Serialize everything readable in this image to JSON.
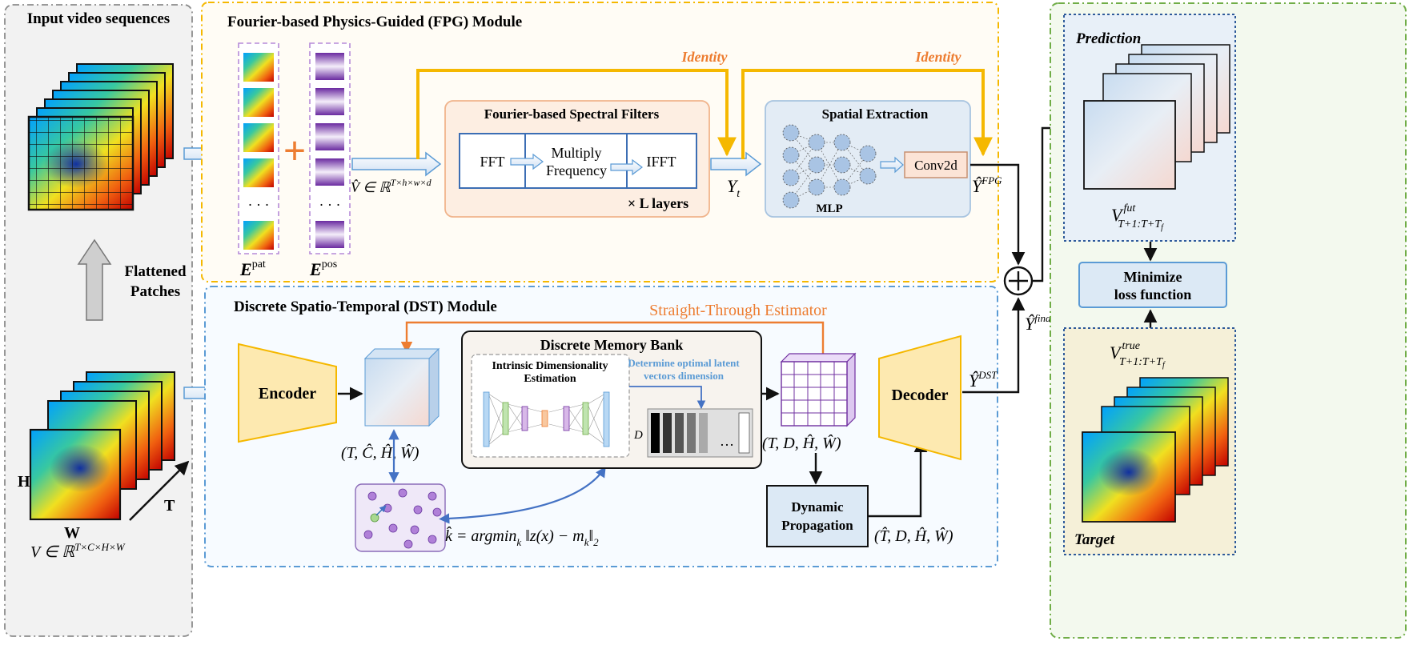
{
  "input_panel": {
    "title": "Input video sequences",
    "flatten_label_1": "Flattened",
    "flatten_label_2": "Patches",
    "dim_h": "H",
    "dim_w": "W",
    "dim_t": "T",
    "formula_base": "V ∈ ℝ",
    "formula_sup": "T×C×H×W"
  },
  "fpg": {
    "title": "Fourier-based Physics-Guided (FPG) Module",
    "identity_1": "Identity",
    "identity_2": "Identity",
    "ellipsis": "· · ·",
    "e_pat": "E",
    "e_pat_sup": "pat",
    "e_pos": "E",
    "e_pos_sup": "pos",
    "v_hat": "V̂ ∈ ℝ",
    "v_hat_sup": "T×h×w×d",
    "spectral_title": "Fourier-based Spectral Filters",
    "fft": "FFT",
    "multiply_1": "Multiply",
    "multiply_2": "Frequency",
    "ifft": "IFFT",
    "layers": "× L layers",
    "y_t": "Y",
    "y_t_sub": "t",
    "spatial_title": "Spatial Extraction",
    "mlp": "MLP",
    "conv": "Conv2d",
    "y_fpg": "Ŷ",
    "y_fpg_sup": "FPG"
  },
  "dst": {
    "title": "Discrete Spatio-Temporal (DST) Module",
    "ste": "Straight-Through Estimator",
    "encoder": "Encoder",
    "memory_title": "Discrete Memory Bank",
    "ide_1": "Intrinsic Dimensionality",
    "ide_2": "Estimation",
    "determine_1": "Determine optimal latent",
    "determine_2": "vectors dimension",
    "d_label": "D",
    "dots": "…",
    "tuple_1": "(T, Ĉ, Ĥ, Ŵ)",
    "tuple_2": "(T, D, Ĥ, Ŵ)",
    "tuple_3": "(T̂, D, Ĥ, Ŵ)",
    "k_formula": "k̂ = argmin",
    "k_sub": "k",
    "k_rest": " ‖z(x) − m",
    "k_sub2": "k",
    "k_tail": "‖",
    "k_sub3": "2",
    "dynamic_1": "Dynamic",
    "dynamic_2": "Propagation",
    "decoder": "Decoder",
    "y_dst": "Ŷ",
    "y_dst_sup": "DST"
  },
  "output": {
    "y_final": "Ŷ",
    "y_final_sup": "final",
    "prediction": "Prediction",
    "v_fut": "V",
    "v_fut_sup": "fut",
    "v_fut_sub": "T+1:T+T",
    "v_fut_subsub": "f",
    "minimize_1": "Minimize",
    "minimize_2": "loss function",
    "v_true": "V",
    "v_true_sup": "true",
    "v_true_sub": "T+1:T+T",
    "v_true_subsub": "f",
    "target": "Target"
  },
  "colors": {
    "gray_panel": "#f2f2f2",
    "fpg_border": "#f5b800",
    "dst_border": "#5b9bd5",
    "green_border": "#70ad47",
    "orange": "#ed7d31",
    "spectral_fill": "#fdeee2",
    "spatial_fill": "#e3ecf5",
    "memory_fill": "#f7f3ee",
    "encoder_fill": "#fde9b0",
    "blue_box": "#dce9f5",
    "purple": "#7030a0"
  }
}
